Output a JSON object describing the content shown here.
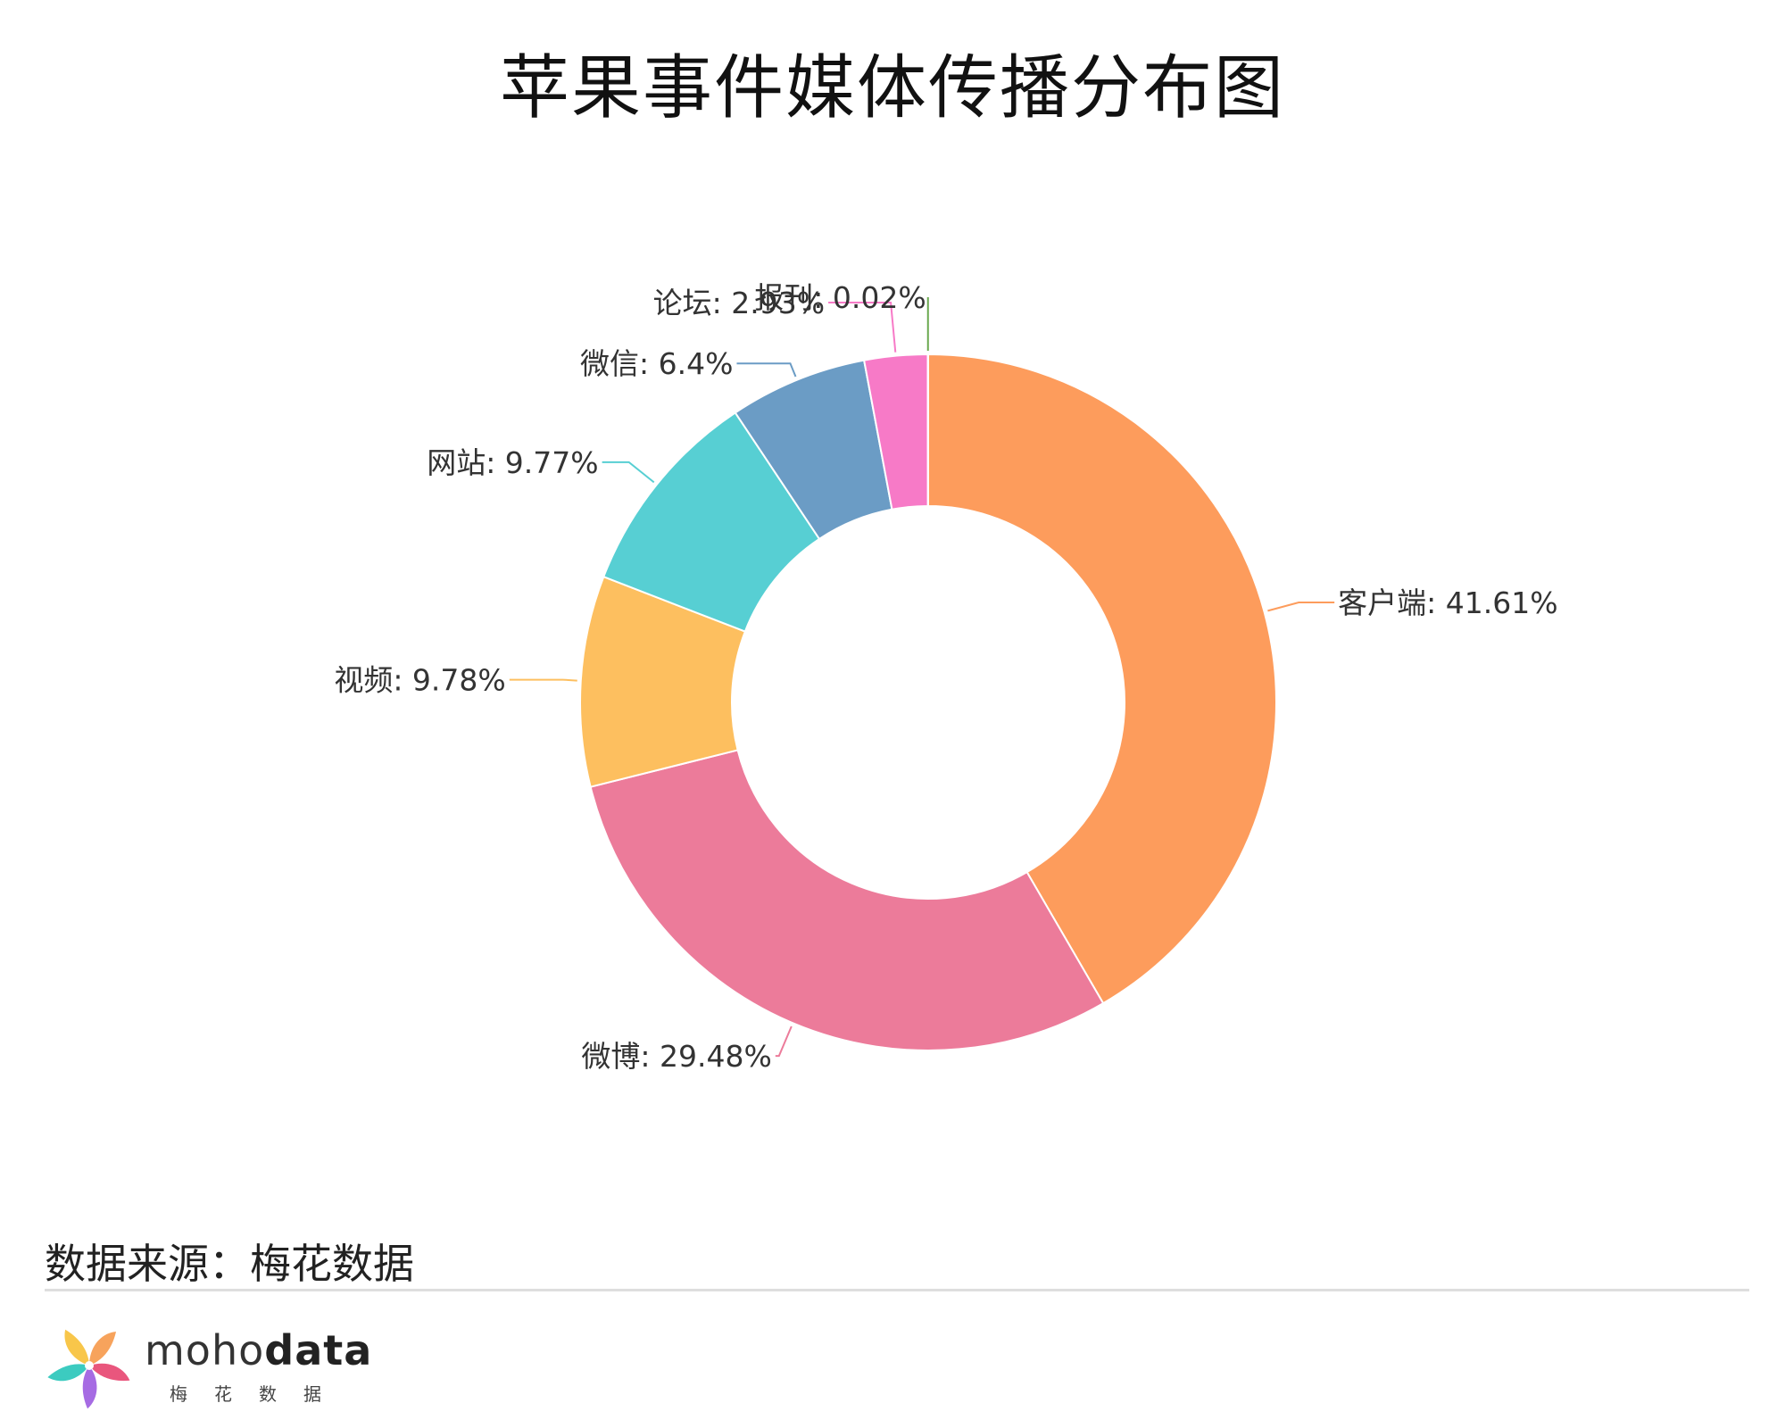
{
  "title": "苹果事件媒体传播分布图",
  "source": "数据来源：梅花数据",
  "logo": {
    "name_light": "moho",
    "name_bold": "data",
    "subtitle": "梅花数据",
    "colors": [
      "#f7a35c",
      "#e9567d",
      "#a66be3",
      "#3ccbc0",
      "#f8c64a"
    ]
  },
  "chart_data": {
    "type": "pie",
    "donut": true,
    "legend": "none",
    "label_format": "{name}: {value}%",
    "slices": [
      {
        "name": "客户端",
        "value": 41.61,
        "color": "#fd9c5c"
      },
      {
        "name": "微博",
        "value": 29.48,
        "color": "#ec7b9a"
      },
      {
        "name": "视频",
        "value": 9.78,
        "color": "#fdbf5f"
      },
      {
        "name": "网站",
        "value": 9.77,
        "color": "#57cfd3"
      },
      {
        "name": "微信",
        "value": 6.4,
        "color": "#6b9cc5"
      },
      {
        "name": "论坛",
        "value": 2.93,
        "color": "#f77ac7"
      },
      {
        "name": "报刊",
        "value": 0.02,
        "color": "#6aa84f"
      }
    ]
  }
}
